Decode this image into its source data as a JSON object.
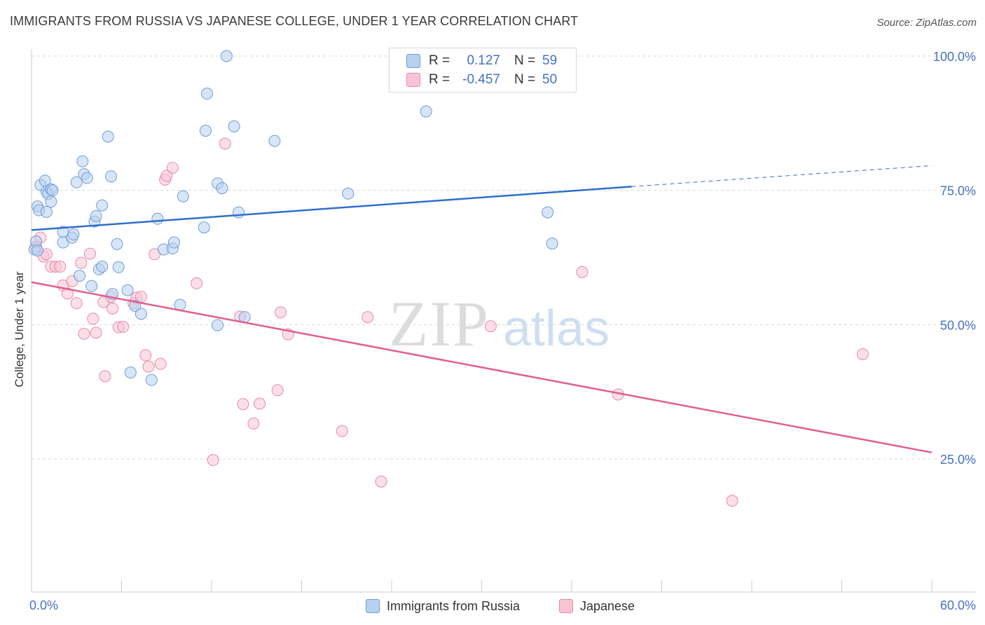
{
  "title": "IMMIGRANTS FROM RUSSIA VS JAPANESE COLLEGE, UNDER 1 YEAR CORRELATION CHART",
  "source": "Source: ZipAtlas.com",
  "watermark": {
    "zip": "ZIP",
    "atlas": "atlas"
  },
  "legend": {
    "rows": [
      {
        "r_label": "R =",
        "r_value": "0.127",
        "n_label": "N =",
        "n_value": "59"
      },
      {
        "r_label": "R =",
        "r_value": "-0.457",
        "n_label": "N =",
        "n_value": "50"
      }
    ]
  },
  "bottom_legend": {
    "russia": "Immigrants from Russia",
    "japanese": "Japanese"
  },
  "colors": {
    "russia_fill": "#b8d0f0",
    "russia_stroke": "#6e9fd8",
    "russia_line": "#2f6fcc",
    "japanese_fill": "#f8c4d4",
    "japanese_stroke": "#e88aa8",
    "japanese_line": "#e0608c",
    "axis_text": "#4472c4",
    "grid": "#d8d8d8"
  },
  "chart_data": {
    "type": "scatter",
    "title": "IMMIGRANTS FROM RUSSIA VS JAPANESE COLLEGE, UNDER 1 YEAR CORRELATION CHART",
    "xlabel": "",
    "ylabel": "College, Under 1 year",
    "xlim": [
      0,
      60
    ],
    "ylim": [
      0,
      105
    ],
    "x_tick_labels": [
      "0.0%",
      "60.0%"
    ],
    "y_tick_labels": [
      "100.0%",
      "75.0%",
      "50.0%",
      "25.0%"
    ],
    "y_ticks": [
      100,
      75,
      50,
      25
    ],
    "series": [
      {
        "name": "Immigrants from Russia",
        "r": 0.127,
        "n": 59,
        "trend": {
          "x0": 0,
          "y0": 67.6,
          "x1": 40,
          "y1": 75.7,
          "dash_to_x": 60,
          "dash_to_y": 79.6
        },
        "points": [
          [
            0.2,
            64
          ],
          [
            0.3,
            65.5
          ],
          [
            0.4,
            72
          ],
          [
            0.5,
            71.3
          ],
          [
            0.6,
            76
          ],
          [
            0.9,
            76.8
          ],
          [
            1.0,
            74.8
          ],
          [
            1.1,
            74.3
          ],
          [
            1.3,
            75.2
          ],
          [
            1.4,
            75
          ],
          [
            1.0,
            71
          ],
          [
            1.3,
            72.9
          ],
          [
            2.1,
            67.3
          ],
          [
            2.1,
            65.3
          ],
          [
            2.7,
            66.2
          ],
          [
            2.8,
            66.8
          ],
          [
            3.0,
            76.5
          ],
          [
            3.2,
            59.1
          ],
          [
            3.4,
            80.4
          ],
          [
            3.5,
            78
          ],
          [
            3.7,
            77.3
          ],
          [
            4.0,
            57.2
          ],
          [
            4.2,
            69.2
          ],
          [
            4.3,
            70.2
          ],
          [
            4.5,
            60.3
          ],
          [
            4.7,
            60.8
          ],
          [
            4.7,
            72.2
          ],
          [
            5.1,
            85
          ],
          [
            5.3,
            77.6
          ],
          [
            5.4,
            55.7
          ],
          [
            5.7,
            65
          ],
          [
            5.8,
            60.7
          ],
          [
            6.4,
            56.4
          ],
          [
            6.6,
            41.1
          ],
          [
            6.9,
            53.5
          ],
          [
            7.3,
            52
          ],
          [
            8.0,
            39.7
          ],
          [
            8.4,
            69.7
          ],
          [
            8.8,
            64
          ],
          [
            9.4,
            64.2
          ],
          [
            9.5,
            65.3
          ],
          [
            9.9,
            53.7
          ],
          [
            10.1,
            73.9
          ],
          [
            11.5,
            68.1
          ],
          [
            11.6,
            86.1
          ],
          [
            11.7,
            93
          ],
          [
            12.4,
            76.3
          ],
          [
            12.7,
            75.4
          ],
          [
            12.4,
            49.9
          ],
          [
            13.0,
            100
          ],
          [
            13.5,
            86.9
          ],
          [
            13.8,
            70.9
          ],
          [
            14.2,
            51.4
          ],
          [
            16.2,
            84.2
          ],
          [
            21.1,
            74.4
          ],
          [
            26.3,
            89.7
          ],
          [
            34.4,
            70.9
          ],
          [
            34.7,
            65.1
          ],
          [
            0.4,
            63.8
          ]
        ]
      },
      {
        "name": "Japanese",
        "r": -0.457,
        "n": 50,
        "trend": {
          "x0": 0,
          "y0": 57.9,
          "x1": 60,
          "y1": 26.2
        },
        "points": [
          [
            0.3,
            64.5
          ],
          [
            0.6,
            66.2
          ],
          [
            0.8,
            62.7
          ],
          [
            1.0,
            63.1
          ],
          [
            1.3,
            60.8
          ],
          [
            1.6,
            60.8
          ],
          [
            1.9,
            60.8
          ],
          [
            2.1,
            57.3
          ],
          [
            2.4,
            55.8
          ],
          [
            2.7,
            58.1
          ],
          [
            3.0,
            54
          ],
          [
            3.3,
            61.5
          ],
          [
            3.5,
            48.3
          ],
          [
            3.9,
            63.2
          ],
          [
            4.1,
            51.1
          ],
          [
            4.3,
            48.5
          ],
          [
            4.8,
            54.2
          ],
          [
            4.9,
            40.4
          ],
          [
            5.3,
            55.2
          ],
          [
            5.4,
            53
          ],
          [
            5.8,
            49.5
          ],
          [
            6.1,
            49.6
          ],
          [
            6.8,
            54
          ],
          [
            7.0,
            55
          ],
          [
            7.3,
            55.2
          ],
          [
            7.6,
            44.3
          ],
          [
            7.8,
            42.2
          ],
          [
            8.2,
            63.1
          ],
          [
            8.6,
            42.7
          ],
          [
            8.9,
            77
          ],
          [
            9.0,
            77.7
          ],
          [
            9.4,
            79.2
          ],
          [
            11.0,
            57.7
          ],
          [
            12.1,
            24.8
          ],
          [
            12.9,
            83.7
          ],
          [
            13.9,
            51.5
          ],
          [
            14.1,
            35.2
          ],
          [
            14.8,
            31.6
          ],
          [
            15.2,
            35.3
          ],
          [
            16.4,
            37.8
          ],
          [
            16.6,
            52.3
          ],
          [
            17.1,
            48.2
          ],
          [
            20.7,
            30.2
          ],
          [
            22.4,
            51.4
          ],
          [
            23.3,
            20.8
          ],
          [
            30.6,
            49.7
          ],
          [
            36.7,
            59.8
          ],
          [
            39.1,
            37
          ],
          [
            46.7,
            17.2
          ],
          [
            55.4,
            44.5
          ]
        ]
      }
    ]
  }
}
